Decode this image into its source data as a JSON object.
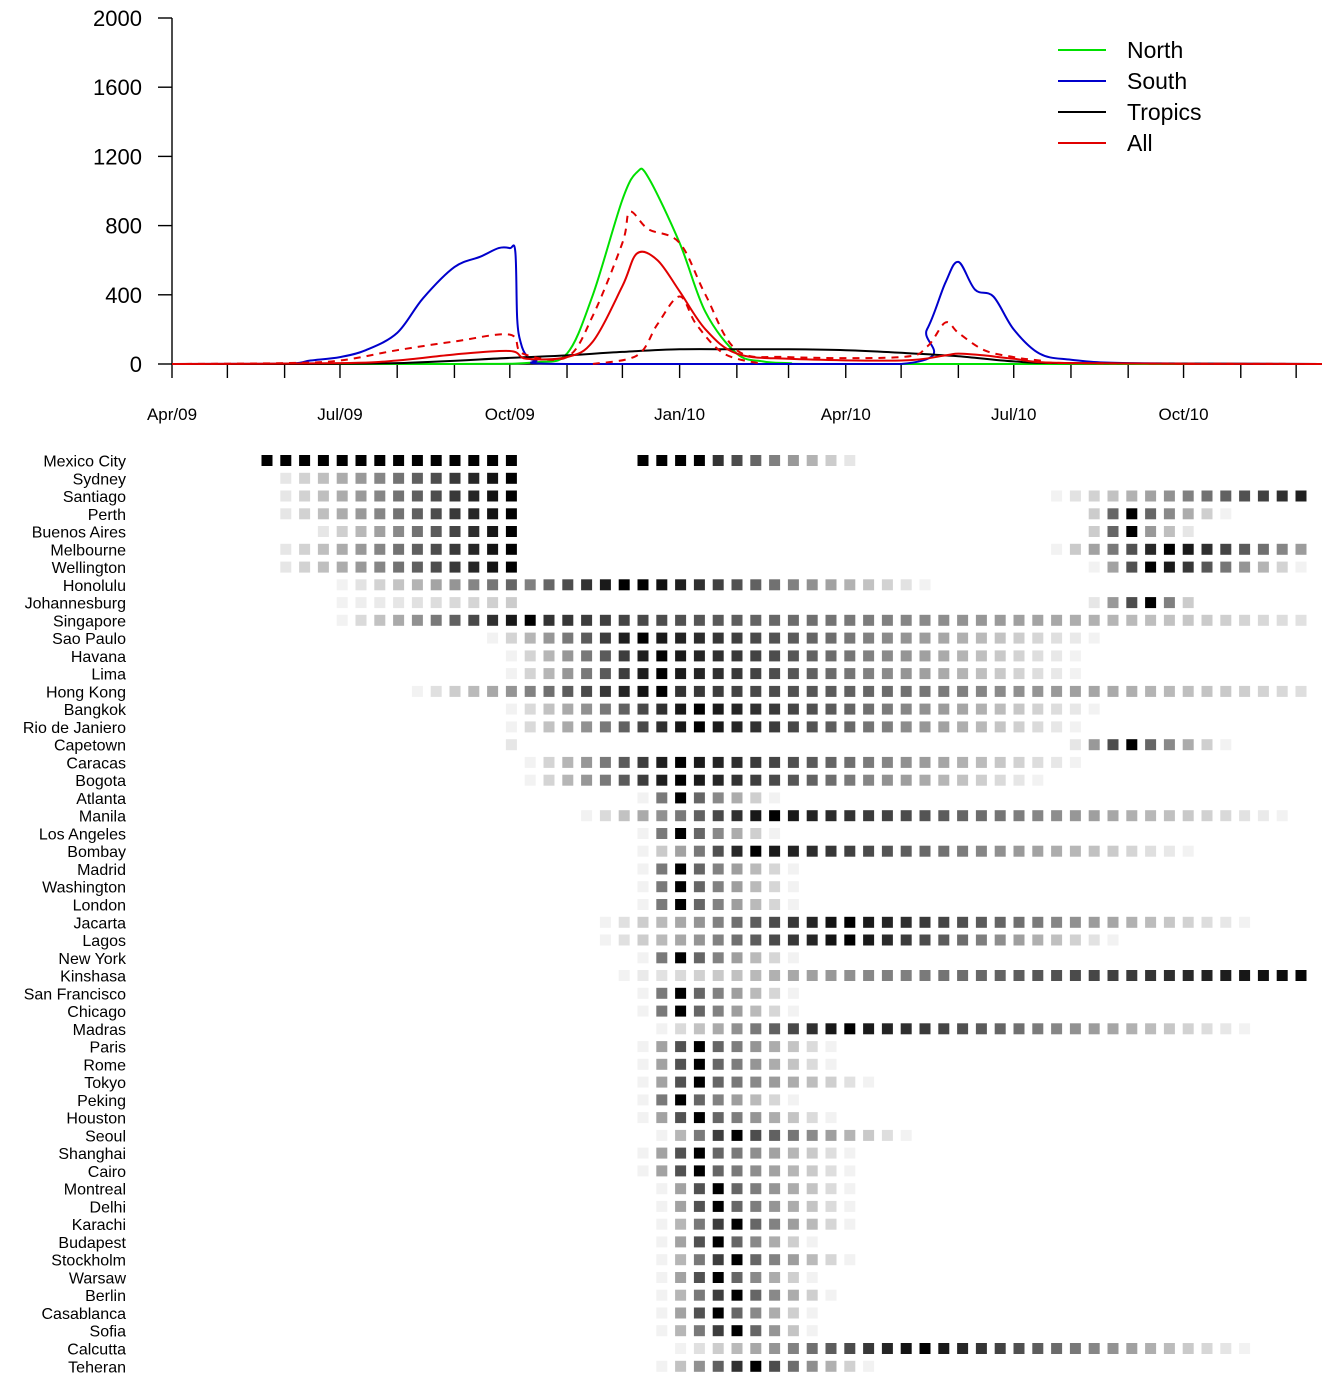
{
  "chart_data": [
    {
      "type": "line",
      "x_axis": {
        "type": "date",
        "range": [
          "2009-04-01",
          "2010-12-15"
        ],
        "tick_labels": [
          "Apr/09",
          "Jul/09",
          "Oct/09",
          "Jan/10",
          "Apr/10",
          "Jul/10",
          "Oct/10"
        ],
        "tick_dates": [
          "2009-04-01",
          "2009-07-01",
          "2009-10-01",
          "2010-01-01",
          "2010-04-01",
          "2010-07-01",
          "2010-10-01"
        ]
      },
      "y_axis": {
        "ylim": [
          0,
          2000
        ],
        "tick_labels": [
          "0",
          "400",
          "800",
          "1200",
          "1600",
          "2000"
        ]
      },
      "legend": {
        "position": "top-right",
        "entries": [
          "North",
          "South",
          "Tropics",
          "All"
        ]
      },
      "colors": {
        "North": "#00e000",
        "South": "#0000cc",
        "Tropics": "#000000",
        "All": "#e00000",
        "All (dashed)": "#e00000"
      },
      "grid": false,
      "series": [
        {
          "name": "North",
          "x": [
            "2009-04-01",
            "2009-09-01",
            "2009-10-15",
            "2009-11-01",
            "2009-11-15",
            "2009-12-01",
            "2009-12-09",
            "2009-12-15",
            "2010-01-01",
            "2010-01-15",
            "2010-02-01",
            "2010-02-15",
            "2010-03-01",
            "2010-04-01",
            "2010-12-15"
          ],
          "values": [
            0,
            0,
            10,
            60,
            400,
            950,
            1110,
            1080,
            700,
            300,
            60,
            15,
            5,
            0,
            0
          ]
        },
        {
          "name": "South",
          "x": [
            "2009-04-01",
            "2009-06-01",
            "2009-06-15",
            "2009-07-01",
            "2009-07-15",
            "2009-08-01",
            "2009-08-15",
            "2009-09-01",
            "2009-09-15",
            "2009-09-25",
            "2009-10-01",
            "2009-10-04",
            "2009-10-05",
            "2009-10-07",
            "2009-10-10",
            "2009-10-15",
            "2009-11-01",
            "2010-05-01",
            "2010-05-15",
            "2010-05-25",
            "2010-06-01",
            "2010-06-10",
            "2010-06-20",
            "2010-07-01",
            "2010-07-15",
            "2010-08-01",
            "2010-09-01",
            "2010-12-15"
          ],
          "values": [
            0,
            2,
            20,
            40,
            80,
            180,
            380,
            560,
            620,
            670,
            670,
            650,
            260,
            120,
            50,
            20,
            0,
            0,
            200,
            470,
            590,
            430,
            390,
            200,
            60,
            25,
            5,
            0
          ]
        },
        {
          "name": "Tropics",
          "x": [
            "2009-04-01",
            "2009-06-01",
            "2009-08-01",
            "2009-10-01",
            "2009-11-01",
            "2009-12-01",
            "2010-01-01",
            "2010-02-01",
            "2010-03-01",
            "2010-04-01",
            "2010-05-01",
            "2010-06-01",
            "2010-07-01",
            "2010-08-01",
            "2010-12-15"
          ],
          "values": [
            0,
            0,
            5,
            35,
            50,
            70,
            85,
            85,
            85,
            80,
            65,
            45,
            15,
            5,
            0
          ]
        },
        {
          "name": "All",
          "x": [
            "2009-04-01",
            "2009-07-01",
            "2009-08-01",
            "2009-09-01",
            "2009-10-01",
            "2009-10-10",
            "2009-11-01",
            "2009-11-15",
            "2009-12-01",
            "2009-12-09",
            "2009-12-20",
            "2010-01-01",
            "2010-01-15",
            "2010-02-01",
            "2010-03-01",
            "2010-05-01",
            "2010-05-25",
            "2010-06-01",
            "2010-06-15",
            "2010-07-01",
            "2010-08-01",
            "2010-12-15"
          ],
          "values": [
            0,
            5,
            20,
            55,
            75,
            30,
            40,
            130,
            450,
            640,
            600,
            420,
            200,
            60,
            30,
            20,
            50,
            60,
            50,
            30,
            5,
            0
          ]
        },
        {
          "name": "All (dashed)",
          "dashed": true,
          "x": [
            "2009-04-01",
            "2009-06-01",
            "2009-07-01",
            "2009-08-01",
            "2009-09-01",
            "2009-10-01",
            "2009-10-08",
            "2009-11-01",
            "2009-11-15",
            "2009-12-01",
            "2009-12-05",
            "2009-12-15",
            "2010-01-01",
            "2010-01-15",
            "2010-02-01",
            "2010-03-01",
            "2010-05-01",
            "2010-05-15",
            "2010-05-25",
            "2010-06-01",
            "2010-06-15",
            "2010-07-01",
            "2010-07-15",
            "2010-08-01",
            "2010-12-15"
          ],
          "values": [
            0,
            5,
            20,
            80,
            130,
            170,
            60,
            40,
            280,
            700,
            880,
            780,
            700,
            400,
            80,
            40,
            40,
            100,
            240,
            180,
            80,
            40,
            20,
            5,
            0
          ]
        },
        {
          "name": "All (dashed, second peak)",
          "dashed": true,
          "x": [
            "2009-11-15",
            "2009-12-09",
            "2009-12-20",
            "2010-01-01",
            "2010-01-10",
            "2010-01-25",
            "2010-02-15"
          ],
          "values": [
            0,
            50,
            230,
            390,
            230,
            60,
            0
          ]
        }
      ]
    },
    {
      "type": "heatmap",
      "value_scale": "0 = white, 1 = black",
      "cities": [
        "Mexico City",
        "Sydney",
        "Santiago",
        "Perth",
        "Buenos Aires",
        "Melbourne",
        "Wellington",
        "Honolulu",
        "Johannesburg",
        "Singapore",
        "Sao Paulo",
        "Havana",
        "Lima",
        "Hong Kong",
        "Bangkok",
        "Rio de Janiero",
        "Capetown",
        "Caracas",
        "Bogota",
        "Atlanta",
        "Manila",
        "Los Angeles",
        "Bombay",
        "Madrid",
        "Washington",
        "London",
        "Jacarta",
        "Lagos",
        "New York",
        "Kinshasa",
        "San Francisco",
        "Chicago",
        "Madras",
        "Paris",
        "Rome",
        "Tokyo",
        "Peking",
        "Houston",
        "Seoul",
        "Shanghai",
        "Cairo",
        "Montreal",
        "Delhi",
        "Karachi",
        "Budapest",
        "Stockholm",
        "Warsaw",
        "Berlin",
        "Casablanca",
        "Sofia",
        "Calcutta",
        "Teheran"
      ],
      "week_columns": 56,
      "rows": [
        "...........................................................................................................",
        "M,0,14,20,1;M,20,24,1,1;M,24,32,0.8,0.1",
        "R,1,14,0.1,1",
        "R,1,14,0.1,1;R,42,58,0.05,1;R,58,66,0.6,0.05",
        "R,1,14,0.1,1;R,44,47,0.2,1;R,47,52,0.6,0.05",
        "R,3,14,0.1,1;R,44,47,0.2,1;R,47,50,0.4,0.1",
        "R,1,14,0.1,1;R,42,49,0.05,1;R,49,60,0.9,0.05",
        "R,1,14,0.1,1;R,44,48,0.05,1;R,48,56,0.9,0.05",
        "R,4,14,0.05,0.6;R,14,20,0.5,1;R,20,36,1,0.05",
        "R,4,14,0.05,0.2;R,44,48,0.1,1;R,48,50,0.5,0.2",
        "R,4,15,0.05,1;R,15,60,0.8,0.05",
        "R,12,21,0.05,1;R,21,45,0.9,0.05",
        "R,13,22,0.05,1;R,22,44,0.9,0.05",
        "R,13,22,0.05,1;R,22,44,0.9,0.05",
        "R,8,22,0.05,1;R,22,60,0.8,0.05",
        "R,13,24,0.05,1;R,24,45,0.9,0.05",
        "R,13,24,0.05,1;R,24,44,0.9,0.05",
        "R,13,14,0.1,0.1;R,43,47,0.1,1;R,47,52,0.6,0.05",
        "R,14,23,0.05,1;R,23,44,0.9,0.05",
        "R,14,23,0.05,1;R,23,42,0.9,0.05",
        "R,20,23,0.05,1;R,23,28,0.6,0.05",
        "R,17,28,0.05,1;R,28,55,0.9,0.05",
        "R,20,23,0.05,1;R,23,28,0.6,0.05",
        "R,20,27,0.05,1;R,27,50,0.9,0.05",
        "R,20,23,0.05,1;R,23,29,0.6,0.05",
        "R,20,23,0.05,1;R,23,29,0.6,0.05",
        "R,20,23,0.05,1;R,23,29,0.6,0.05",
        "R,18,32,0.05,1;R,32,53,0.9,0.05",
        "R,18,32,0.05,1;R,32,46,0.9,0.05",
        "R,20,23,0.05,1;R,23,29,0.6,0.05",
        "R,19,34,0.05,0.5;R,34,57,0.5,1",
        "R,20,23,0.05,1;R,23,29,0.6,0.05",
        "R,20,23,0.05,1;R,23,29,0.6,0.05",
        "R,21,32,0.05,1;R,32,53,0.9,0.05",
        "R,20,24,0.05,1;R,24,31,0.6,0.05",
        "R,20,24,0.05,1;R,24,31,0.6,0.05",
        "R,20,24,0.05,1;R,24,33,0.6,0.05",
        "R,20,23,0.05,1;R,23,29,0.6,0.05",
        "R,20,24,0.05,1;R,24,31,0.6,0.05",
        "R,21,26,0.05,1;R,26,35,0.7,0.05",
        "R,20,24,0.05,1;R,24,32,0.6,0.05",
        "R,20,24,0.05,1;R,24,32,0.6,0.05",
        "R,21,25,0.05,1;R,25,32,0.6,0.05",
        "R,21,25,0.05,1;R,25,32,0.6,0.05",
        "R,21,26,0.05,1;R,26,32,0.6,0.05",
        "R,21,25,0.05,1;R,25,30,0.6,0.05",
        "R,21,26,0.05,1;R,26,32,0.6,0.05",
        "R,21,25,0.05,1;R,25,30,0.6,0.05",
        "R,21,26,0.05,1;R,26,31,0.6,0.05",
        "R,21,25,0.05,1;R,25,30,0.6,0.05",
        "R,21,26,0.05,1;R,26,30,0.6,0.05",
        "R,22,36,0.05,1;R,36,53,0.9,0.05",
        "R,21,27,0.05,1;R,27,33,0.7,0.05"
      ]
    }
  ]
}
